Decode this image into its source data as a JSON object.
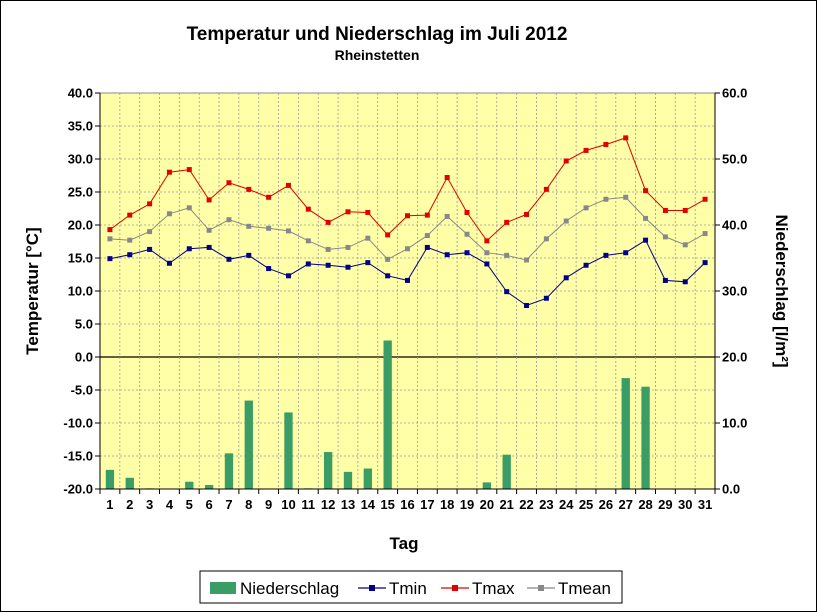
{
  "chart_data": {
    "type": "bar+line",
    "title": "Temperatur und Niederschlag im Juli 2012",
    "subtitle": "Rheinstetten",
    "xlabel": "Tag",
    "ylabel_left": "Temperatur [°C]",
    "ylabel_right": "Niederschlag [l/m²]",
    "ylim_left": [
      -20,
      40
    ],
    "ylim_right": [
      0,
      60
    ],
    "yticks_left": [
      "40.0",
      "35.0",
      "30.0",
      "25.0",
      "20.0",
      "15.0",
      "10.0",
      "5.0",
      "0.0",
      "-5.0",
      "-10.0",
      "-15.0",
      "-20.0"
    ],
    "yticks_right": [
      "60.0",
      "50.0",
      "40.0",
      "30.0",
      "20.0",
      "10.0",
      "0.0"
    ],
    "categories": [
      "1",
      "2",
      "3",
      "4",
      "5",
      "6",
      "7",
      "8",
      "9",
      "10",
      "11",
      "12",
      "13",
      "14",
      "15",
      "16",
      "17",
      "18",
      "19",
      "20",
      "21",
      "22",
      "23",
      "24",
      "25",
      "26",
      "27",
      "28",
      "29",
      "30",
      "31"
    ],
    "grid": true,
    "legend_position": "bottom",
    "colors": {
      "plot_bg": "#ffffa8",
      "bar": "#3a9d66",
      "tmin": "#00008b",
      "tmax": "#e00000",
      "tmean": "#888888"
    },
    "series": [
      {
        "name": "Niederschlag",
        "type": "bar",
        "axis": "right",
        "values": [
          2.9,
          1.7,
          0.1,
          0.0,
          1.1,
          0.6,
          5.4,
          13.4,
          0.0,
          11.6,
          0.1,
          5.6,
          2.6,
          3.1,
          22.5,
          0.0,
          0.0,
          0.0,
          0.0,
          1.0,
          5.2,
          0.0,
          0.0,
          0.0,
          0.0,
          0.0,
          16.8,
          15.5,
          0.0,
          0.0,
          0.0
        ]
      },
      {
        "name": "Tmin",
        "type": "line",
        "axis": "left",
        "values": [
          14.9,
          15.5,
          16.3,
          14.2,
          16.4,
          16.6,
          14.8,
          15.4,
          13.4,
          12.3,
          14.1,
          13.9,
          13.6,
          14.3,
          12.3,
          11.6,
          16.6,
          15.5,
          15.8,
          14.1,
          9.9,
          7.8,
          8.9,
          12.0,
          13.9,
          15.4,
          15.8,
          17.7,
          11.6,
          11.4,
          14.3
        ]
      },
      {
        "name": "Tmax",
        "type": "line",
        "axis": "left",
        "values": [
          19.3,
          21.5,
          23.2,
          28.0,
          28.4,
          23.8,
          26.4,
          25.4,
          24.2,
          26.0,
          22.4,
          20.4,
          22.0,
          21.9,
          18.5,
          21.4,
          21.5,
          27.2,
          21.9,
          17.6,
          20.4,
          21.6,
          25.4,
          29.7,
          31.3,
          32.2,
          33.2,
          25.2,
          22.2,
          22.2,
          23.9
        ]
      },
      {
        "name": "Tmean",
        "type": "line",
        "axis": "left",
        "values": [
          17.9,
          17.7,
          19.0,
          21.7,
          22.6,
          19.2,
          20.8,
          19.8,
          19.5,
          19.1,
          17.6,
          16.3,
          16.6,
          18.0,
          14.8,
          16.4,
          18.4,
          21.3,
          18.6,
          15.8,
          15.4,
          14.7,
          17.9,
          20.6,
          22.6,
          23.9,
          24.2,
          21.0,
          18.2,
          17.0,
          18.7
        ]
      }
    ]
  }
}
